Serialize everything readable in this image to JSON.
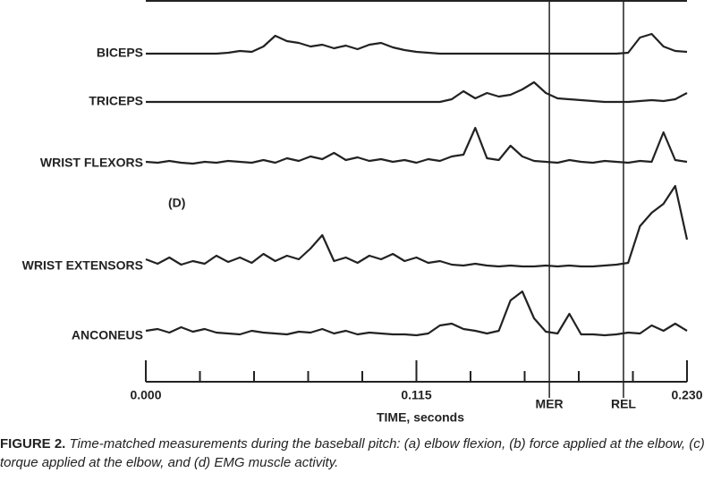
{
  "chart_data": {
    "type": "line",
    "panel_label": "(D)",
    "xlabel": "TIME, seconds",
    "xlim": [
      0,
      0.23
    ],
    "xticks": [
      {
        "value": 0,
        "label": "0.000"
      },
      0.115,
      {
        "value": 0.23,
        "label": "0.230"
      }
    ],
    "xminorticks": [
      0.023,
      0.046,
      0.069,
      0.092,
      0.138,
      0.161,
      0.184,
      0.207
    ],
    "markers": [
      {
        "label": "MER",
        "x": 0.1715
      },
      {
        "label": "REL",
        "x": 0.203
      }
    ],
    "x": [
      0,
      0.005,
      0.01,
      0.015,
      0.02,
      0.025,
      0.03,
      0.035,
      0.04,
      0.045,
      0.05,
      0.055,
      0.06,
      0.065,
      0.07,
      0.075,
      0.08,
      0.085,
      0.09,
      0.095,
      0.1,
      0.105,
      0.11,
      0.115,
      0.12,
      0.125,
      0.13,
      0.135,
      0.14,
      0.145,
      0.15,
      0.155,
      0.16,
      0.165,
      0.17,
      0.175,
      0.18,
      0.185,
      0.19,
      0.195,
      0.2,
      0.205,
      0.21,
      0.215,
      0.22,
      0.225,
      0.23
    ],
    "series": [
      {
        "name": "BICEPS",
        "color": "#222",
        "values": [
          0,
          0,
          0,
          0,
          0,
          0,
          0,
          1,
          3,
          2,
          8,
          20,
          14,
          12,
          8,
          10,
          6,
          9,
          5,
          10,
          12,
          7,
          4,
          2,
          1,
          0,
          0,
          0,
          0,
          0,
          0,
          0,
          0,
          0,
          0,
          0,
          0,
          0,
          0,
          0,
          0,
          1,
          18,
          22,
          8,
          3,
          2
        ]
      },
      {
        "name": "TRICEPS",
        "color": "#222",
        "values": [
          0,
          0,
          0,
          0,
          0,
          0,
          0,
          0,
          0,
          0,
          0,
          0,
          0,
          0,
          0,
          0,
          0,
          0,
          0,
          0,
          0,
          0,
          0,
          0,
          0,
          0,
          3,
          12,
          4,
          10,
          6,
          8,
          14,
          22,
          10,
          4,
          3,
          2,
          1,
          0,
          0,
          0,
          1,
          2,
          1,
          3,
          10
        ]
      },
      {
        "name": "WRIST FLEXORS",
        "color": "#222",
        "values": [
          2,
          1,
          3,
          1,
          0,
          2,
          1,
          3,
          2,
          1,
          4,
          1,
          6,
          3,
          8,
          5,
          12,
          4,
          7,
          3,
          5,
          2,
          4,
          1,
          5,
          3,
          8,
          10,
          40,
          6,
          4,
          20,
          8,
          3,
          2,
          1,
          4,
          2,
          1,
          3,
          2,
          1,
          3,
          2,
          35,
          4,
          2
        ]
      },
      {
        "name": "WRIST EXTENSORS",
        "color": "#222",
        "values": [
          8,
          3,
          10,
          2,
          6,
          3,
          12,
          5,
          10,
          4,
          14,
          6,
          12,
          8,
          20,
          35,
          6,
          10,
          4,
          12,
          8,
          14,
          6,
          10,
          4,
          6,
          2,
          1,
          3,
          1,
          0,
          1,
          0,
          0,
          1,
          0,
          1,
          0,
          0,
          1,
          2,
          4,
          45,
          60,
          70,
          90,
          30
        ]
      },
      {
        "name": "ANCONEUS",
        "color": "#222",
        "values": [
          6,
          8,
          4,
          10,
          5,
          8,
          4,
          3,
          2,
          6,
          4,
          3,
          2,
          5,
          4,
          8,
          3,
          6,
          2,
          4,
          3,
          2,
          2,
          1,
          3,
          12,
          14,
          8,
          6,
          3,
          6,
          40,
          50,
          20,
          5,
          3,
          25,
          2,
          2,
          1,
          2,
          4,
          3,
          12,
          6,
          14,
          6
        ]
      }
    ],
    "caption": {
      "label": "FIGURE 2.",
      "text": "Time-matched measurements during the baseball pitch: (a) elbow flexion, (b) force applied at the elbow, (c) torque applied at the elbow, and (d) EMG muscle activity."
    }
  }
}
